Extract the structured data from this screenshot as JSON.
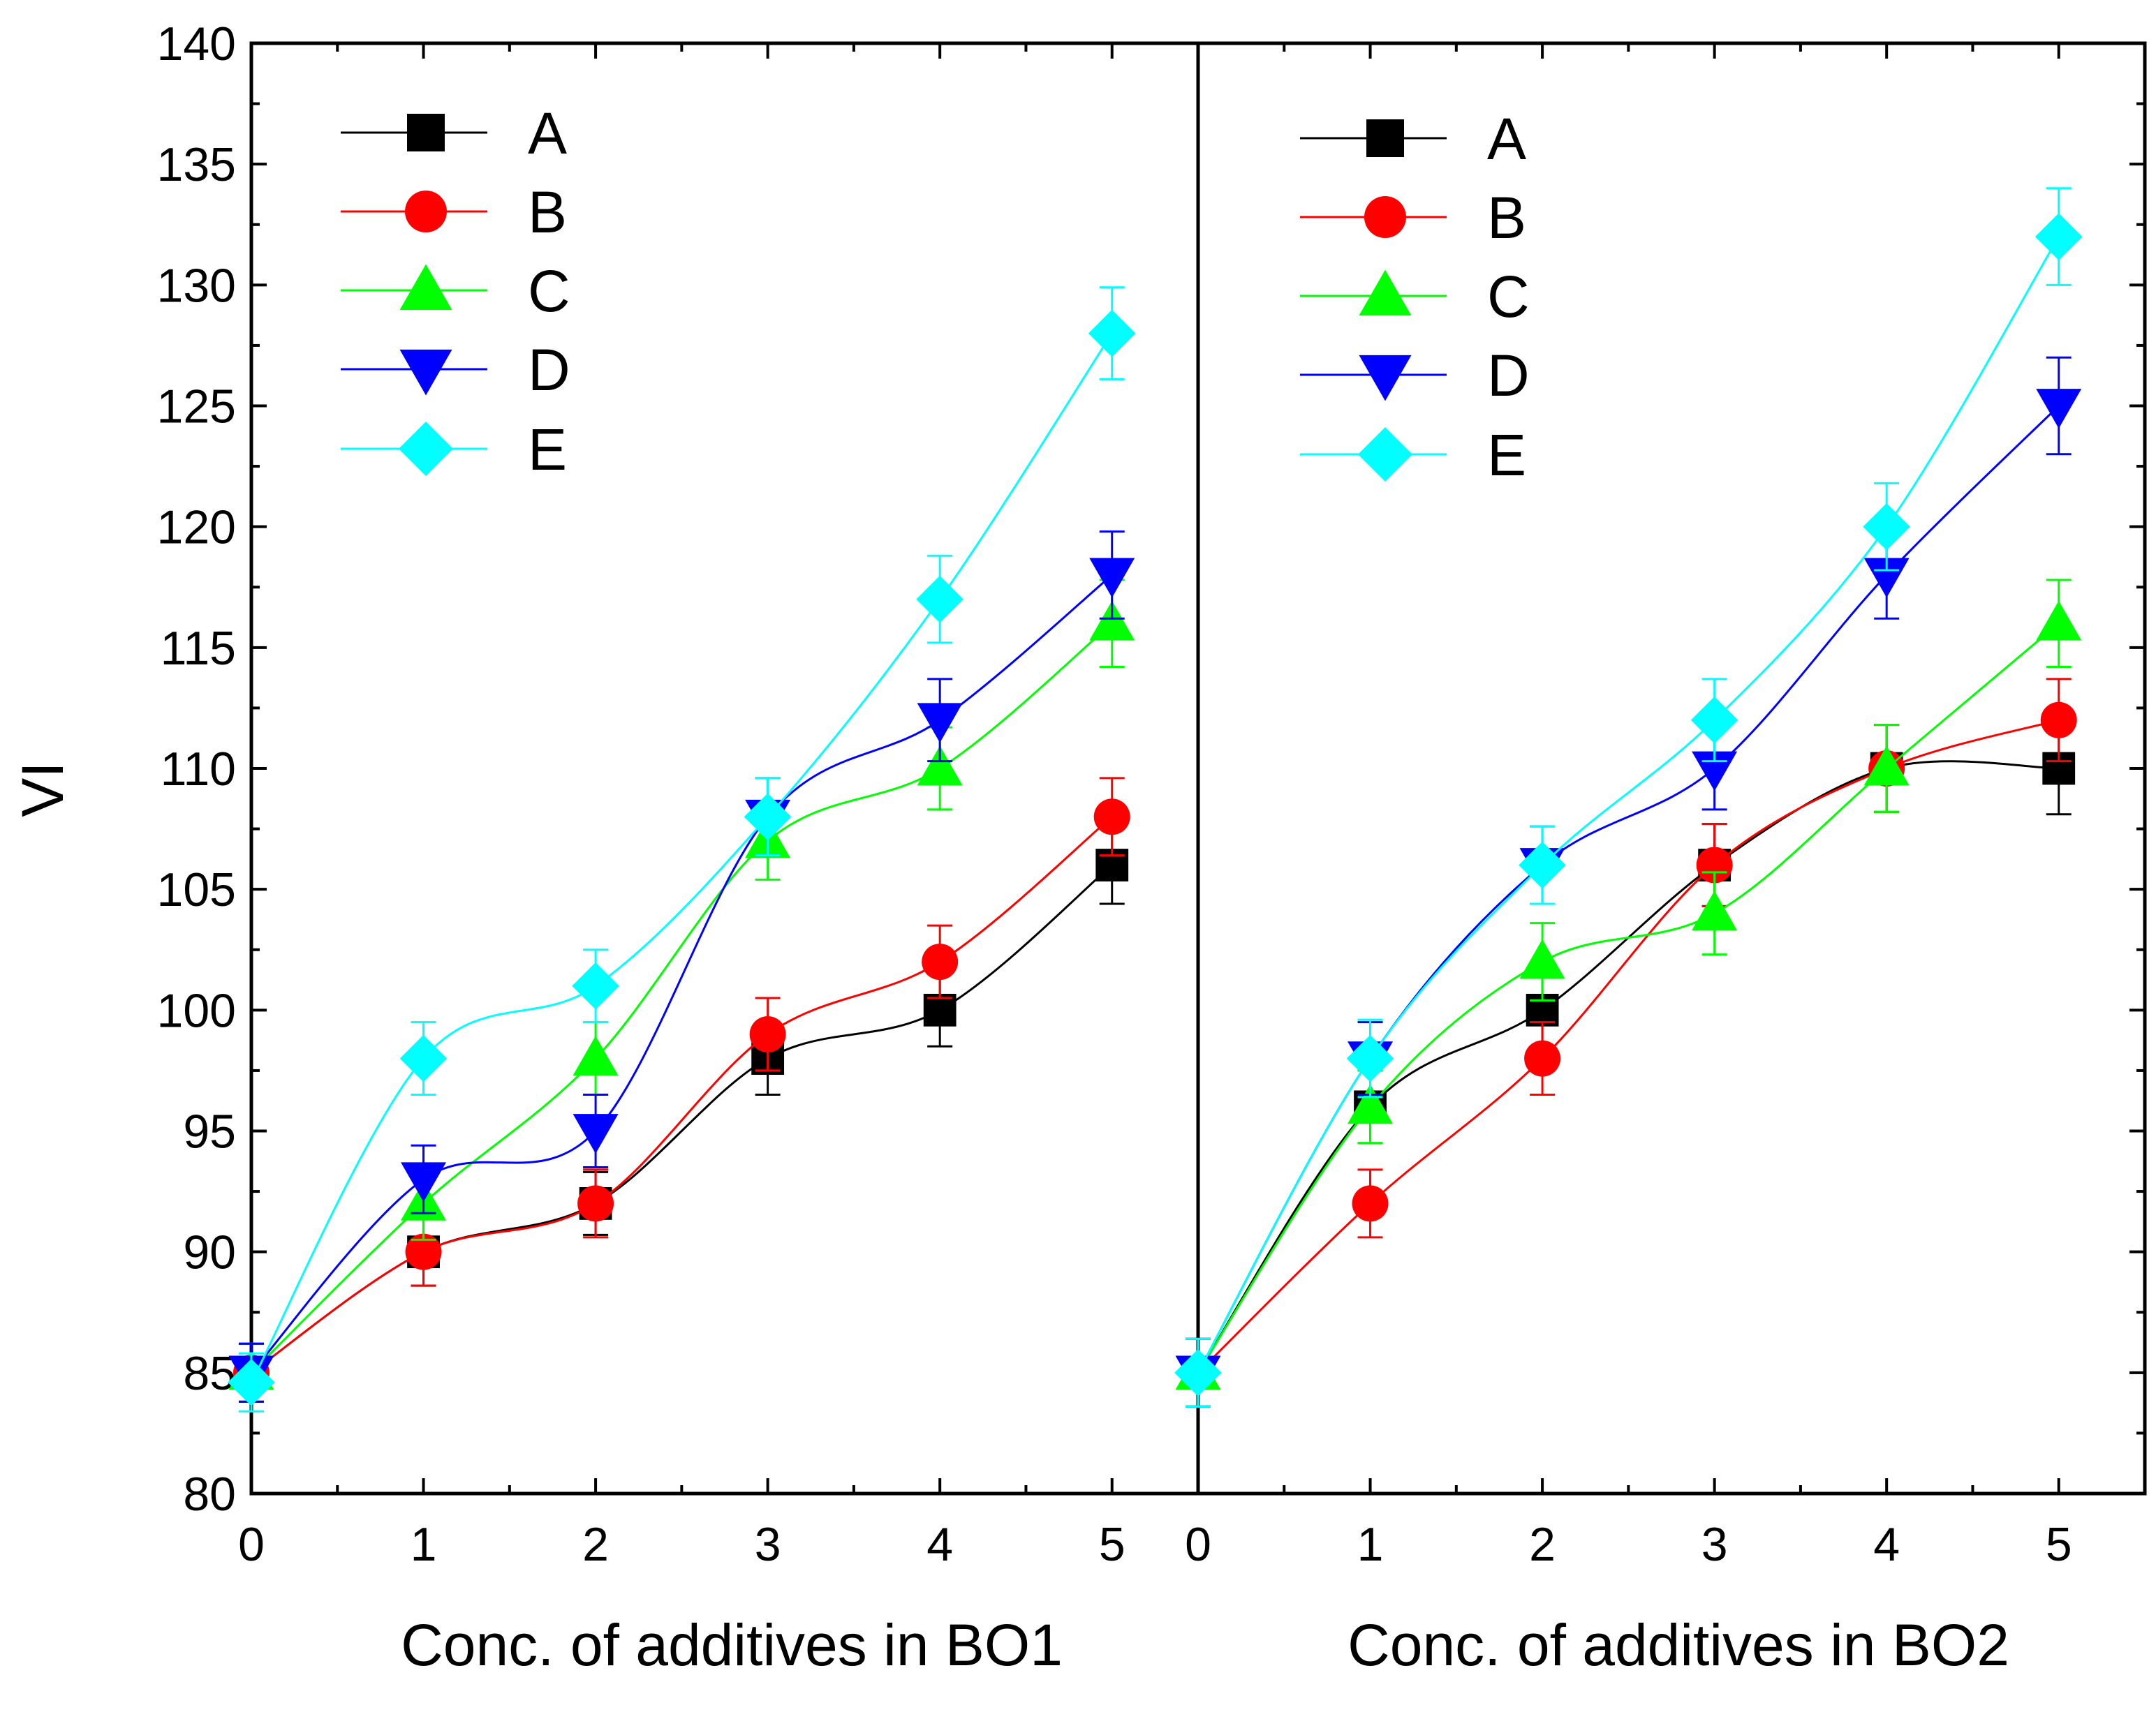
{
  "chart_data": {
    "type": "line",
    "ylabel": "VI",
    "ylim": [
      80,
      140
    ],
    "yticks": [
      "80",
      "85",
      "90",
      "95",
      "100",
      "105",
      "110",
      "115",
      "120",
      "125",
      "130",
      "135",
      "140"
    ],
    "legend_position": "top-left",
    "panels": [
      {
        "xlabel": "Conc. of additives in BO1",
        "xlim": [
          0,
          5.5
        ],
        "xticks": [
          "0",
          "1",
          "2",
          "3",
          "4",
          "5"
        ],
        "x": [
          0,
          1,
          2,
          3,
          4,
          5
        ],
        "series": [
          {
            "name": "A",
            "color": "#000000",
            "marker": "square",
            "values": [
              85,
              90,
              92,
              98,
              100,
              106
            ],
            "errors": [
              1.2,
              1.4,
              1.3,
              1.5,
              1.5,
              1.6
            ]
          },
          {
            "name": "B",
            "color": "#ff0000",
            "marker": "circle",
            "values": [
              85,
              90,
              92,
              99,
              102,
              108
            ],
            "errors": [
              1.2,
              1.4,
              1.4,
              1.5,
              1.5,
              1.6
            ]
          },
          {
            "name": "C",
            "color": "#00ff00",
            "marker": "triangle-up",
            "values": [
              85,
              92,
              98,
              107,
              110,
              116
            ],
            "errors": [
              1.2,
              1.5,
              1.5,
              1.6,
              1.7,
              1.8
            ]
          },
          {
            "name": "D",
            "color": "#0000ff",
            "marker": "triangle-down",
            "values": [
              85,
              93,
              95,
              108,
              112,
              118
            ],
            "errors": [
              1.2,
              1.4,
              1.5,
              1.6,
              1.7,
              1.8
            ]
          },
          {
            "name": "E",
            "color": "#00ffff",
            "marker": "diamond",
            "values": [
              84.6,
              98,
              101,
              108,
              117,
              128
            ],
            "errors": [
              1.2,
              1.5,
              1.5,
              1.6,
              1.8,
              1.9
            ]
          }
        ]
      },
      {
        "xlabel": "Conc. of additives in BO2",
        "xlim": [
          0,
          5.5
        ],
        "xticks": [
          "0",
          "1",
          "2",
          "3",
          "4",
          "5"
        ],
        "x": [
          0,
          1,
          2,
          3,
          4,
          5
        ],
        "series": [
          {
            "name": "A",
            "color": "#000000",
            "marker": "square",
            "values": [
              85,
              96,
              100,
              106,
              110,
              110
            ],
            "errors": [
              1.4,
              1.5,
              1.6,
              1.7,
              1.8,
              1.9
            ]
          },
          {
            "name": "B",
            "color": "#ff0000",
            "marker": "circle",
            "values": [
              85,
              92,
              98,
              106,
              110,
              112
            ],
            "errors": [
              1.4,
              1.4,
              1.5,
              1.7,
              1.8,
              1.7
            ]
          },
          {
            "name": "C",
            "color": "#00ff00",
            "marker": "triangle-up",
            "values": [
              85,
              96,
              102,
              104,
              110,
              116
            ],
            "errors": [
              1.4,
              1.5,
              1.6,
              1.7,
              1.8,
              1.8
            ]
          },
          {
            "name": "D",
            "color": "#0000ff",
            "marker": "triangle-down",
            "values": [
              85,
              98,
              106,
              110,
              118,
              125
            ],
            "errors": [
              1.4,
              1.5,
              1.6,
              1.7,
              1.8,
              2.0
            ]
          },
          {
            "name": "E",
            "color": "#00ffff",
            "marker": "diamond",
            "values": [
              85,
              98,
              106,
              112,
              120,
              132
            ],
            "errors": [
              1.4,
              1.6,
              1.6,
              1.7,
              1.8,
              2.0
            ]
          }
        ]
      }
    ]
  }
}
